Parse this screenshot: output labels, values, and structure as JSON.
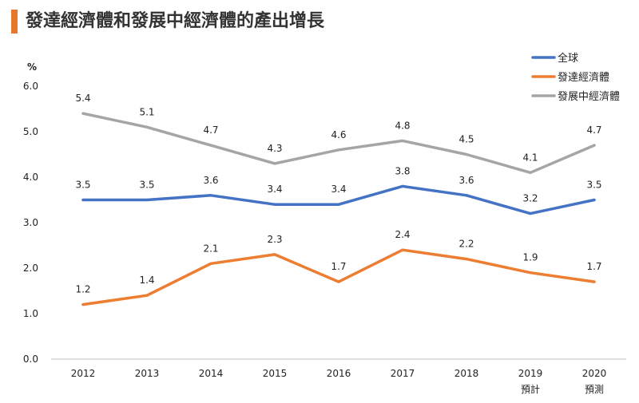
{
  "title": "發達經濟體和發展中經濟體的產出增長",
  "chart_data": {
    "type": "line",
    "title": "發達經濟體和發展中經濟體的產出增長",
    "ylabel": "%",
    "xlabel": "",
    "categories": [
      "2012",
      "2013",
      "2014",
      "2015",
      "2016",
      "2017",
      "2018",
      "2019",
      "2020"
    ],
    "category_notes": [
      "",
      "",
      "",
      "",
      "",
      "",
      "",
      "預計",
      "預測"
    ],
    "ylim": [
      0,
      6
    ],
    "yticks": [
      "0.0",
      "1.0",
      "2.0",
      "3.0",
      "4.0",
      "5.0",
      "6.0"
    ],
    "grid": false,
    "legend": "top-right",
    "series": [
      {
        "name": "全球",
        "color": "#4472C4",
        "values": [
          3.5,
          3.5,
          3.6,
          3.4,
          3.4,
          3.8,
          3.6,
          3.2,
          3.5
        ],
        "labels": [
          "3.5",
          "3.5",
          "3.6",
          "3.4",
          "3.4",
          "3.8",
          "3.6",
          "3.2",
          "3.5"
        ]
      },
      {
        "name": "發達經濟體",
        "color": "#ED7D31",
        "values": [
          1.2,
          1.4,
          2.1,
          2.3,
          1.7,
          2.4,
          2.2,
          1.9,
          1.7
        ],
        "labels": [
          "1.2",
          "1.4",
          "2.1",
          "2.3",
          "1.7",
          "2.4",
          "2.2",
          "1.9",
          "1.7"
        ]
      },
      {
        "name": "發展中經濟體",
        "color": "#A5A5A5",
        "values": [
          5.4,
          5.1,
          4.7,
          4.3,
          4.6,
          4.8,
          4.5,
          4.1,
          4.7
        ],
        "labels": [
          "5.4",
          "5.1",
          "4.7",
          "4.3",
          "4.6",
          "4.8",
          "4.5",
          "4.1",
          "4.7"
        ]
      }
    ]
  }
}
